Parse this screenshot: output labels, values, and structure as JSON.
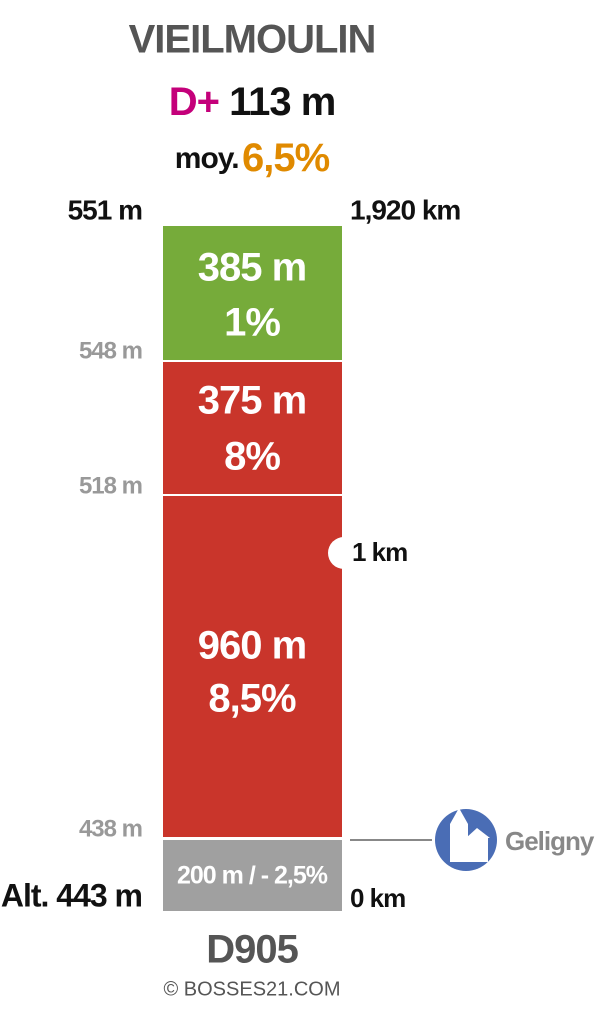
{
  "header": {
    "title": "VIEILMOULIN",
    "gain_label": "D+",
    "gain": "113 m",
    "average_label": "moy.",
    "average": "6,5%"
  },
  "top": {
    "altitude": "551 m",
    "distance": "1,920 km"
  },
  "segments": [
    {
      "length": "385 m",
      "grade": "1%"
    },
    {
      "length": "375 m",
      "grade": "8%"
    },
    {
      "length": "960 m",
      "grade": "8,5%"
    },
    {
      "label": "200 m / - 2,5%"
    }
  ],
  "altitudes": [
    "548 m",
    "518 m",
    "438 m"
  ],
  "start": {
    "altitude": "Alt. 443 m",
    "distance": "0 km"
  },
  "marker": "1 km",
  "place": "Geligny",
  "road": "D905",
  "credit": "© BOSSES21.COM"
}
